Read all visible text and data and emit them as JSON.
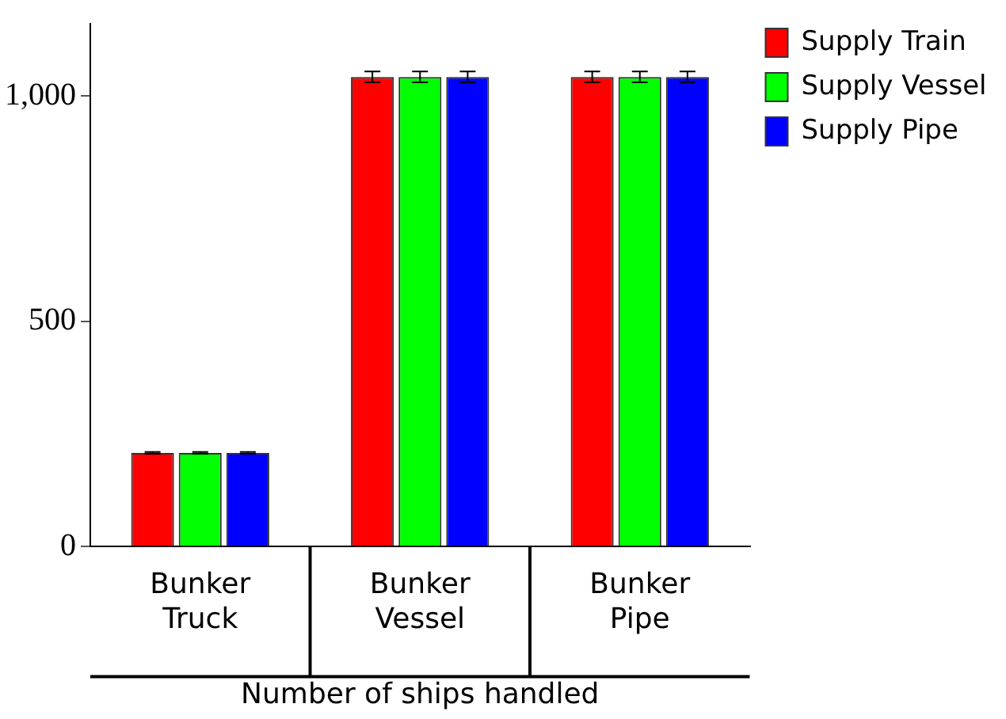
{
  "chart_data": {
    "type": "bar",
    "xlabel": "Number of ships handled",
    "categories": [
      "Bunker Truck",
      "Bunker Vessel",
      "Bunker Pipe"
    ],
    "series": [
      {
        "name": "Supply Train",
        "color": "#ff0000",
        "values": [
          208,
          1042,
          1042
        ],
        "errors": [
          2,
          12,
          12
        ]
      },
      {
        "name": "Supply Vessel",
        "color": "#00ff00",
        "values": [
          208,
          1042,
          1042
        ],
        "errors": [
          2,
          12,
          12
        ]
      },
      {
        "name": "Supply Pipe",
        "color": "#0000ff",
        "values": [
          208,
          1042,
          1042
        ],
        "errors": [
          2,
          12,
          12
        ]
      }
    ],
    "ylim": [
      0,
      1160
    ],
    "yticks": [
      0,
      {
        "value": 500,
        "label": "500"
      },
      {
        "value": 1000,
        "label": "1,000"
      }
    ],
    "grid": false,
    "legend": "top right"
  }
}
